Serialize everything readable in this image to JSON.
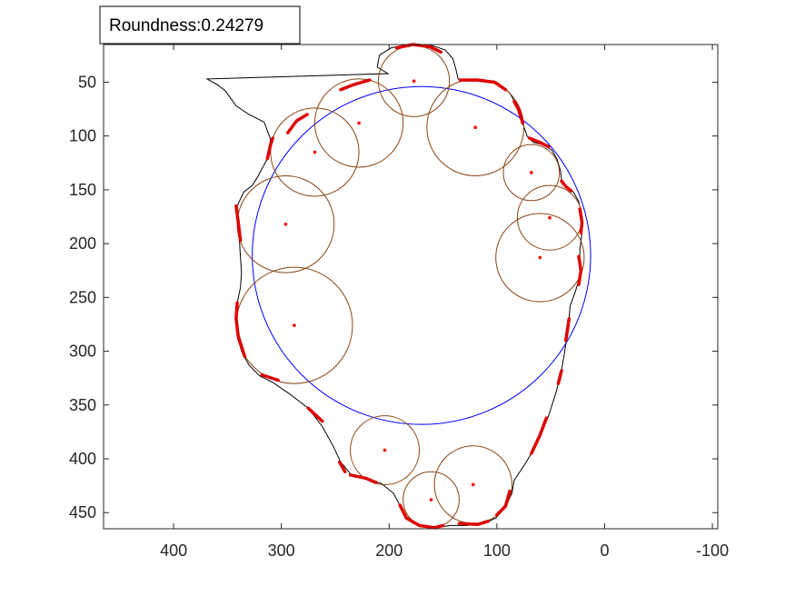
{
  "chart_data": {
    "type": "scatter",
    "annotation": {
      "label": "Roundness:",
      "value": "0.24279"
    },
    "x_axis": {
      "reversed": true,
      "lim": [
        -105,
        465
      ],
      "ticks": [
        400,
        300,
        200,
        100,
        0,
        -100
      ],
      "tick_labels": [
        "400",
        "300",
        "200",
        "100",
        "0",
        "-100"
      ]
    },
    "y_axis": {
      "reversed": true,
      "lim": [
        15,
        465
      ],
      "ticks": [
        50,
        100,
        150,
        200,
        250,
        300,
        350,
        400,
        450
      ],
      "tick_labels": [
        "50",
        "100",
        "150",
        "200",
        "250",
        "300",
        "350",
        "400",
        "450"
      ]
    },
    "grid": false,
    "colors": {
      "outline": "#000000",
      "fit_circle": "#0000ff",
      "corner_circles": "#8b4513",
      "centers": "#ff0000",
      "highlighted_arcs": "#dd0000",
      "annotation_border": "#000000"
    },
    "outline": [
      [
        175,
        15
      ],
      [
        160,
        16
      ],
      [
        148,
        20
      ],
      [
        141,
        28
      ],
      [
        138,
        38
      ],
      [
        136,
        47
      ],
      [
        131,
        49
      ],
      [
        115,
        48
      ],
      [
        100,
        50
      ],
      [
        88,
        60
      ],
      [
        80,
        75
      ],
      [
        76,
        88
      ],
      [
        72,
        100
      ],
      [
        66,
        106
      ],
      [
        57,
        108
      ],
      [
        49,
        113
      ],
      [
        44,
        122
      ],
      [
        41,
        132
      ],
      [
        40,
        140
      ],
      [
        36,
        147
      ],
      [
        29,
        152
      ],
      [
        24,
        161
      ],
      [
        21,
        175
      ],
      [
        21,
        190
      ],
      [
        23,
        205
      ],
      [
        23,
        218
      ],
      [
        23,
        230
      ],
      [
        27,
        244
      ],
      [
        32,
        258
      ],
      [
        33,
        270
      ],
      [
        35,
        285
      ],
      [
        37,
        300
      ],
      [
        40,
        318
      ],
      [
        45,
        338
      ],
      [
        52,
        360
      ],
      [
        58,
        375
      ],
      [
        65,
        390
      ],
      [
        74,
        405
      ],
      [
        84,
        420
      ],
      [
        86,
        432
      ],
      [
        92,
        445
      ],
      [
        101,
        455
      ],
      [
        112,
        460
      ],
      [
        128,
        462
      ],
      [
        143,
        462
      ],
      [
        157,
        464
      ],
      [
        169,
        463
      ],
      [
        178,
        460
      ],
      [
        185,
        453
      ],
      [
        189,
        445
      ],
      [
        196,
        432
      ],
      [
        207,
        423
      ],
      [
        220,
        418
      ],
      [
        235,
        415
      ],
      [
        245,
        403
      ],
      [
        252,
        388
      ],
      [
        262,
        370
      ],
      [
        275,
        353
      ],
      [
        292,
        340
      ],
      [
        308,
        329
      ],
      [
        320,
        323
      ],
      [
        330,
        313
      ],
      [
        337,
        300
      ],
      [
        341,
        284
      ],
      [
        342,
        268
      ],
      [
        341,
        255
      ],
      [
        338,
        241
      ],
      [
        337,
        227
      ],
      [
        338,
        212
      ],
      [
        339,
        195
      ],
      [
        340,
        180
      ],
      [
        341,
        165
      ],
      [
        335,
        152
      ],
      [
        327,
        146
      ],
      [
        322,
        138
      ],
      [
        313,
        121
      ],
      [
        310,
        103
      ],
      [
        316,
        87
      ],
      [
        330,
        80
      ],
      [
        342,
        72
      ],
      [
        352,
        58
      ],
      [
        360,
        52
      ],
      [
        369,
        47
      ],
      [
        380,
        45
      ],
      [
        392,
        44
      ],
      [
        201,
        42
      ],
      [
        211,
        36
      ],
      [
        209,
        25
      ],
      [
        198,
        18
      ],
      [
        188,
        16
      ],
      [
        175,
        15
      ]
    ],
    "fit_circle": {
      "cx": 170,
      "cy": 211,
      "r": 157
    },
    "corner_circles": [
      {
        "cx": 177,
        "cy": 49,
        "r": 33
      },
      {
        "cx": 228,
        "cy": 88,
        "r": 41
      },
      {
        "cx": 269,
        "cy": 115,
        "r": 41
      },
      {
        "cx": 120,
        "cy": 92,
        "r": 45
      },
      {
        "cx": 68,
        "cy": 134,
        "r": 26
      },
      {
        "cx": 51,
        "cy": 176,
        "r": 30
      },
      {
        "cx": 60,
        "cy": 213,
        "r": 41
      },
      {
        "cx": 296,
        "cy": 182,
        "r": 45
      },
      {
        "cx": 288,
        "cy": 276,
        "r": 54
      },
      {
        "cx": 204,
        "cy": 392,
        "r": 32
      },
      {
        "cx": 122,
        "cy": 424,
        "r": 36
      },
      {
        "cx": 161,
        "cy": 438,
        "r": 26
      }
    ],
    "highlighted_arcs": [
      [
        [
          193,
          18
        ],
        [
          178,
          15
        ],
        [
          162,
          17
        ],
        [
          152,
          22
        ]
      ],
      [
        [
          134,
          48
        ],
        [
          118,
          48
        ],
        [
          102,
          50
        ],
        [
          92,
          57
        ]
      ],
      [
        [
          84,
          68
        ],
        [
          80,
          75
        ],
        [
          76,
          88
        ]
      ],
      [
        [
          245,
          57
        ],
        [
          232,
          52
        ],
        [
          218,
          48
        ]
      ],
      [
        [
          294,
          97
        ],
        [
          286,
          86
        ],
        [
          276,
          80
        ]
      ],
      [
        [
          313,
          121
        ],
        [
          310,
          108
        ],
        [
          308,
          102
        ]
      ],
      [
        [
          70,
          102
        ],
        [
          60,
          106
        ],
        [
          52,
          110
        ]
      ],
      [
        [
          40,
          142
        ],
        [
          36,
          147
        ],
        [
          31,
          151
        ]
      ],
      [
        [
          23,
          168
        ],
        [
          21,
          180
        ],
        [
          22,
          190
        ]
      ],
      [
        [
          24,
          212
        ],
        [
          22,
          225
        ],
        [
          24,
          238
        ]
      ],
      [
        [
          338,
          197
        ],
        [
          340,
          180
        ],
        [
          342,
          165
        ]
      ],
      [
        [
          341,
          255
        ],
        [
          342,
          270
        ],
        [
          340,
          286
        ],
        [
          334,
          305
        ]
      ],
      [
        [
          303,
          327
        ],
        [
          318,
          322
        ]
      ],
      [
        [
          33,
          270
        ],
        [
          36,
          290
        ]
      ],
      [
        [
          40,
          318
        ],
        [
          43,
          330
        ]
      ],
      [
        [
          54,
          362
        ],
        [
          60,
          378
        ],
        [
          68,
          395
        ]
      ],
      [
        [
          275,
          353
        ],
        [
          262,
          365
        ]
      ],
      [
        [
          246,
          403
        ],
        [
          241,
          412
        ]
      ],
      [
        [
          236,
          415
        ],
        [
          222,
          418
        ],
        [
          212,
          422
        ]
      ],
      [
        [
          190,
          443
        ],
        [
          184,
          455
        ],
        [
          172,
          462
        ],
        [
          158,
          464
        ],
        [
          150,
          462
        ]
      ],
      [
        [
          135,
          460
        ],
        [
          118,
          461
        ],
        [
          108,
          458
        ]
      ],
      [
        [
          100,
          452
        ],
        [
          92,
          444
        ],
        [
          88,
          430
        ]
      ]
    ],
    "centers": [
      [
        177,
        49
      ],
      [
        228,
        88
      ],
      [
        269,
        115
      ],
      [
        120,
        92
      ],
      [
        68,
        134
      ],
      [
        51,
        176
      ],
      [
        60,
        213
      ],
      [
        296,
        182
      ],
      [
        288,
        276
      ],
      [
        204,
        392
      ],
      [
        122,
        424
      ],
      [
        161,
        438
      ]
    ]
  }
}
